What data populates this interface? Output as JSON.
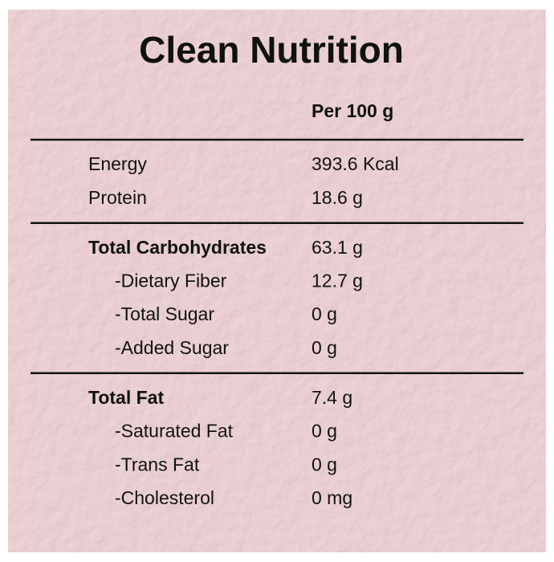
{
  "title": "Clean Nutrition",
  "column_header": "Per 100 g",
  "sections": [
    {
      "items": [
        {
          "label": "Energy",
          "value": "393.6 Kcal"
        },
        {
          "label": "Protein",
          "value": "18.6 g"
        }
      ]
    },
    {
      "heading": {
        "label": "Total Carbohydrates",
        "value": "63.1 g"
      },
      "items": [
        {
          "label": "-Dietary Fiber",
          "value": "12.7 g"
        },
        {
          "label": "-Total Sugar",
          "value": "0 g"
        },
        {
          "label": "-Added Sugar",
          "value": "0 g"
        }
      ]
    },
    {
      "heading": {
        "label": "Total Fat",
        "value": "7.4 g"
      },
      "items": [
        {
          "label": "-Saturated Fat",
          "value": "0 g"
        },
        {
          "label": "-Trans Fat",
          "value": "0 g"
        },
        {
          "label": "-Cholesterol",
          "value": "0 mg"
        }
      ]
    }
  ]
}
